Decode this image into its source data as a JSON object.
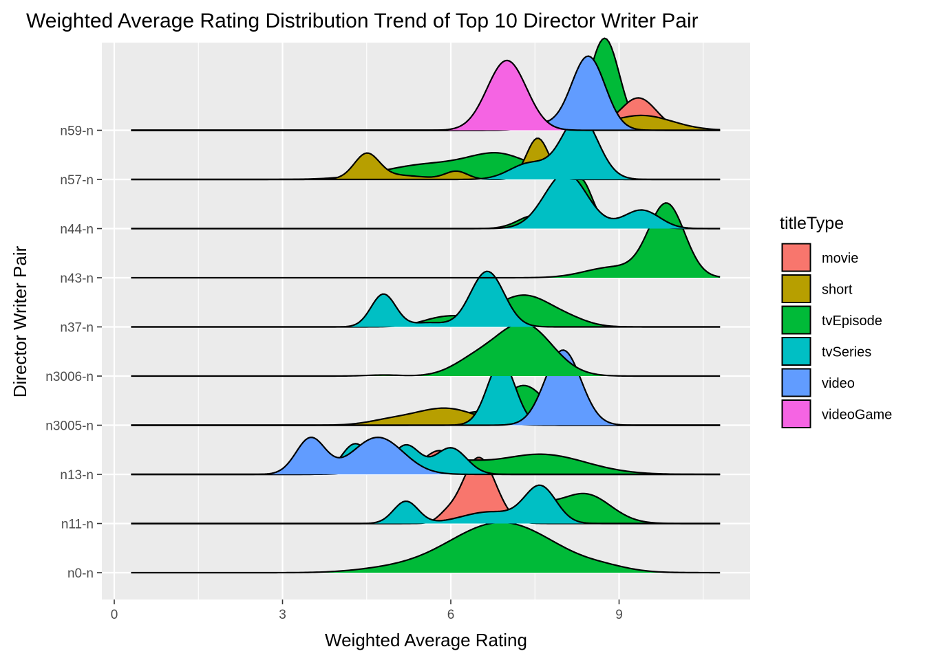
{
  "chart_data": {
    "type": "ridgeline",
    "title": "Weighted Average Rating Distribution Trend of Top 10 Director Writer Pair",
    "xlabel": "Weighted Average Rating",
    "ylabel": "Director Writer Pair",
    "xlim": [
      -0.2,
      11.3
    ],
    "x_ticks": [
      0,
      3,
      6,
      9
    ],
    "x_tick_labels": [
      "0",
      "3",
      "6",
      "9"
    ],
    "x_range_drawn": [
      0.3,
      10.8
    ],
    "categories": [
      "n0-n",
      "n11-n",
      "n13-n",
      "n3005-n",
      "n3006-n",
      "n37-n",
      "n43-n",
      "n44-n",
      "n57-n",
      "n59-n"
    ],
    "grid": true,
    "legend": {
      "title": "titleType",
      "placement": "right",
      "items": [
        {
          "label": "movie",
          "color": "#F8766D"
        },
        {
          "label": "short",
          "color": "#B79F00"
        },
        {
          "label": "tvEpisode",
          "color": "#00BA38"
        },
        {
          "label": "tvSeries",
          "color": "#00BFC4"
        },
        {
          "label": "video",
          "color": "#619CFF"
        },
        {
          "label": "videoGame",
          "color": "#F564E3"
        }
      ]
    },
    "series": [
      {
        "category": "n0-n",
        "type": "tvEpisode",
        "components": [
          [
            6.9,
            0.95,
            0.95
          ],
          [
            8.8,
            0.4,
            0.05
          ],
          [
            4.8,
            0.6,
            0.05
          ]
        ]
      },
      {
        "category": "n11-n",
        "type": "tvEpisode",
        "components": [
          [
            7.4,
            0.4,
            0.35
          ],
          [
            8.4,
            0.45,
            0.55
          ],
          [
            6.2,
            0.3,
            0.25
          ]
        ]
      },
      {
        "category": "n11-n",
        "type": "movie",
        "components": [
          [
            6.5,
            0.3,
            1.25
          ],
          [
            5.9,
            0.15,
            0.1
          ]
        ]
      },
      {
        "category": "n11-n",
        "type": "tvSeries",
        "components": [
          [
            5.2,
            0.22,
            0.42
          ],
          [
            7.6,
            0.28,
            0.68
          ],
          [
            6.7,
            0.5,
            0.22
          ]
        ]
      },
      {
        "category": "n13-n",
        "type": "tvEpisode",
        "components": [
          [
            7.6,
            0.8,
            0.38
          ],
          [
            6.0,
            0.5,
            0.2
          ],
          [
            5.0,
            0.4,
            0.35
          ]
        ]
      },
      {
        "category": "n13-n",
        "type": "movie",
        "components": [
          [
            4.7,
            0.25,
            0.6
          ],
          [
            5.8,
            0.3,
            0.45
          ],
          [
            4.2,
            0.2,
            0.15
          ]
        ]
      },
      {
        "category": "n13-n",
        "type": "tvSeries",
        "components": [
          [
            4.3,
            0.25,
            0.58
          ],
          [
            5.2,
            0.25,
            0.55
          ],
          [
            6.0,
            0.28,
            0.5
          ]
        ]
      },
      {
        "category": "n13-n",
        "type": "video",
        "components": [
          [
            3.5,
            0.26,
            0.68
          ],
          [
            4.7,
            0.45,
            0.7
          ]
        ]
      },
      {
        "category": "n3005-n",
        "type": "tvEpisode",
        "components": [
          [
            7.3,
            0.4,
            0.75
          ],
          [
            6.3,
            0.3,
            0.2
          ]
        ]
      },
      {
        "category": "n3005-n",
        "type": "short",
        "components": [
          [
            5.9,
            0.55,
            0.32
          ],
          [
            4.9,
            0.4,
            0.08
          ]
        ]
      },
      {
        "category": "n3005-n",
        "type": "tvSeries",
        "components": [
          [
            6.9,
            0.25,
            1.2
          ]
        ]
      },
      {
        "category": "n3005-n",
        "type": "video",
        "components": [
          [
            8.0,
            0.32,
            1.42
          ]
        ]
      },
      {
        "category": "n3006-n",
        "type": "tvEpisode",
        "components": [
          [
            7.3,
            0.5,
            0.98
          ],
          [
            6.4,
            0.4,
            0.25
          ],
          [
            4.8,
            0.3,
            0.02
          ]
        ]
      },
      {
        "category": "n37-n",
        "type": "tvEpisode",
        "components": [
          [
            7.3,
            0.55,
            0.6
          ],
          [
            5.9,
            0.4,
            0.18
          ],
          [
            8.2,
            0.3,
            0.05
          ]
        ]
      },
      {
        "category": "n37-n",
        "type": "tvSeries",
        "components": [
          [
            4.8,
            0.22,
            0.62
          ],
          [
            6.65,
            0.3,
            1.05
          ],
          [
            5.6,
            0.3,
            0.08
          ]
        ]
      },
      {
        "category": "n43-n",
        "type": "tvEpisode",
        "components": [
          [
            9.85,
            0.32,
            1.38
          ],
          [
            8.9,
            0.5,
            0.2
          ]
        ]
      },
      {
        "category": "n44-n",
        "type": "tvEpisode",
        "components": [
          [
            8.3,
            0.22,
            0.95
          ],
          [
            7.5,
            0.3,
            0.25
          ],
          [
            9.3,
            0.3,
            0.1
          ]
        ]
      },
      {
        "category": "n44-n",
        "type": "tvSeries",
        "components": [
          [
            8.05,
            0.38,
            1.05
          ],
          [
            9.4,
            0.32,
            0.35
          ]
        ]
      },
      {
        "category": "n57-n",
        "type": "tvEpisode",
        "components": [
          [
            6.9,
            0.55,
            0.42
          ],
          [
            5.6,
            0.8,
            0.28
          ],
          [
            8.0,
            0.3,
            0.25
          ]
        ]
      },
      {
        "category": "n57-n",
        "type": "short",
        "components": [
          [
            4.5,
            0.22,
            0.45
          ],
          [
            7.55,
            0.2,
            0.78
          ],
          [
            6.1,
            0.2,
            0.15
          ],
          [
            5.0,
            0.5,
            0.08
          ]
        ]
      },
      {
        "category": "n57-n",
        "type": "tvSeries",
        "components": [
          [
            8.3,
            0.32,
            1.2
          ],
          [
            7.4,
            0.35,
            0.3
          ]
        ]
      },
      {
        "category": "n59-n",
        "type": "tvEpisode",
        "components": [
          [
            8.75,
            0.26,
            1.7
          ],
          [
            8.0,
            0.4,
            0.22
          ]
        ]
      },
      {
        "category": "n59-n",
        "type": "movie",
        "components": [
          [
            9.35,
            0.32,
            0.6
          ],
          [
            8.0,
            0.6,
            0.15
          ]
        ]
      },
      {
        "category": "n59-n",
        "type": "short",
        "components": [
          [
            9.4,
            0.55,
            0.28
          ],
          [
            7.8,
            0.5,
            0.12
          ]
        ]
      },
      {
        "category": "n59-n",
        "type": "video",
        "components": [
          [
            8.45,
            0.3,
            1.4
          ],
          [
            7.6,
            0.3,
            0.1
          ]
        ]
      },
      {
        "category": "n59-n",
        "type": "videoGame",
        "components": [
          [
            7.0,
            0.35,
            1.32
          ]
        ]
      }
    ]
  }
}
